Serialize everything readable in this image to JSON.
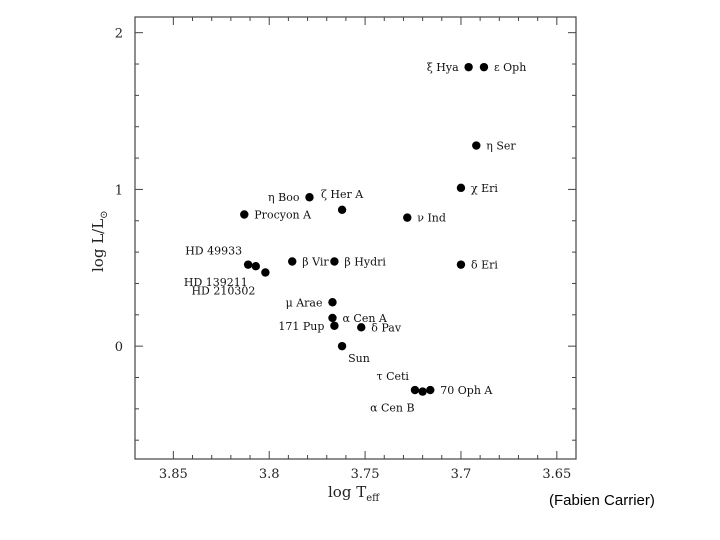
{
  "chart_data": {
    "type": "scatter",
    "title": "",
    "xlabel": "log T",
    "xlabel_sub": "eff",
    "ylabel": "log L/L",
    "ylabel_sub": "⊙",
    "xlim": [
      3.87,
      3.64
    ],
    "ylim": [
      -0.72,
      2.1
    ],
    "x_reversed": true,
    "x_ticks": [
      "3.85",
      "3.8",
      "3.75",
      "3.7",
      "3.65"
    ],
    "x_tick_values": [
      3.85,
      3.8,
      3.75,
      3.7,
      3.65
    ],
    "y_ticks": [
      "0",
      "1",
      "2"
    ],
    "y_tick_values": [
      0,
      1,
      2
    ],
    "grid": false,
    "legend": "none",
    "marker_color": "#000000",
    "points": [
      {
        "label": "ξ Hya",
        "x": 3.696,
        "y": 1.78,
        "anchor": "left"
      },
      {
        "label": "ε Oph",
        "x": 3.688,
        "y": 1.78,
        "anchor": "right"
      },
      {
        "label": "η Ser",
        "x": 3.692,
        "y": 1.28,
        "anchor": "right"
      },
      {
        "label": "χ Eri",
        "x": 3.7,
        "y": 1.01,
        "anchor": "right"
      },
      {
        "label": "η Boo",
        "x": 3.779,
        "y": 0.95,
        "anchor": "left"
      },
      {
        "label": "ζ Her A",
        "x": 3.762,
        "y": 0.87,
        "anchor": "above"
      },
      {
        "label": "ν Ind",
        "x": 3.728,
        "y": 0.82,
        "anchor": "right"
      },
      {
        "label": "Procyon A",
        "x": 3.813,
        "y": 0.84,
        "anchor": "right"
      },
      {
        "label": "HD 49933",
        "x": 3.811,
        "y": 0.52,
        "anchor": "above-left"
      },
      {
        "label": "HD 139211",
        "x": 3.807,
        "y": 0.51,
        "anchor": "below-left"
      },
      {
        "label": "HD 210302",
        "x": 3.802,
        "y": 0.47,
        "anchor": "below-left2"
      },
      {
        "label": "β Vir",
        "x": 3.788,
        "y": 0.54,
        "anchor": "right"
      },
      {
        "label": "β Hydri",
        "x": 3.766,
        "y": 0.54,
        "anchor": "right"
      },
      {
        "label": "δ Eri",
        "x": 3.7,
        "y": 0.52,
        "anchor": "right"
      },
      {
        "label": "μ Arae",
        "x": 3.767,
        "y": 0.28,
        "anchor": "left"
      },
      {
        "label": "α Cen A",
        "x": 3.767,
        "y": 0.18,
        "anchor": "right"
      },
      {
        "label": "171 Pup",
        "x": 3.766,
        "y": 0.13,
        "anchor": "left"
      },
      {
        "label": "δ Pav",
        "x": 3.752,
        "y": 0.12,
        "anchor": "right"
      },
      {
        "label": "Sun",
        "x": 3.762,
        "y": 0.0,
        "anchor": "below-right"
      },
      {
        "label": "τ Ceti",
        "x": 3.724,
        "y": -0.28,
        "anchor": "above-left"
      },
      {
        "label": "α Cen B",
        "x": 3.72,
        "y": -0.29,
        "anchor": "below-left"
      },
      {
        "label": "70 Oph A",
        "x": 3.716,
        "y": -0.28,
        "anchor": "right"
      }
    ]
  },
  "credit": "(Fabien Carrier)"
}
